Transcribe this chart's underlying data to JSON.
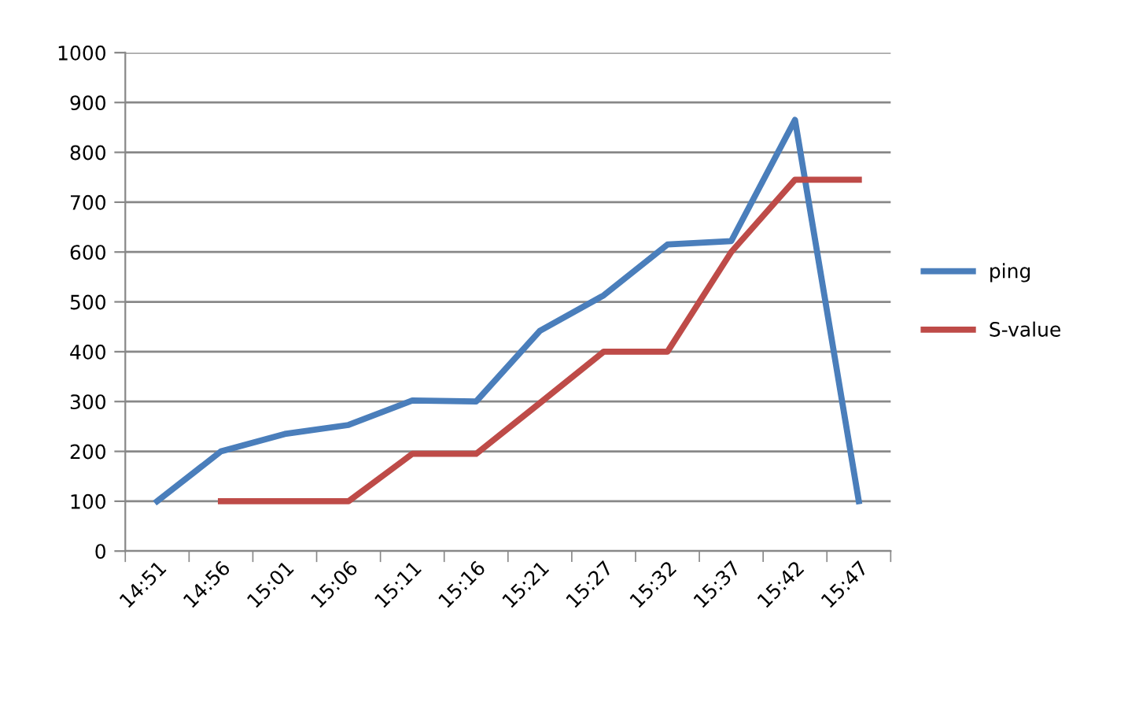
{
  "chart_data": {
    "type": "line",
    "categories": [
      "14:51",
      "14:56",
      "15:01",
      "15:06",
      "15:11",
      "15:16",
      "15:21",
      "15:27",
      "15:32",
      "15:37",
      "15:42",
      "15:47"
    ],
    "series": [
      {
        "name": "ping",
        "color": "#4a7ebb",
        "values": [
          100,
          200,
          235,
          253,
          302,
          300,
          442,
          513,
          615,
          622,
          865,
          100
        ]
      },
      {
        "name": "S-value",
        "color": "#be4b48",
        "values": [
          null,
          100,
          100,
          100,
          195,
          195,
          297,
          400,
          400,
          600,
          745,
          745
        ]
      }
    ],
    "ylim": [
      0,
      1000
    ],
    "yticks": [
      0,
      100,
      200,
      300,
      400,
      500,
      600,
      700,
      800,
      900,
      1000
    ],
    "grid": "y",
    "legend": "right",
    "marker": "none",
    "line_style": "solid"
  }
}
